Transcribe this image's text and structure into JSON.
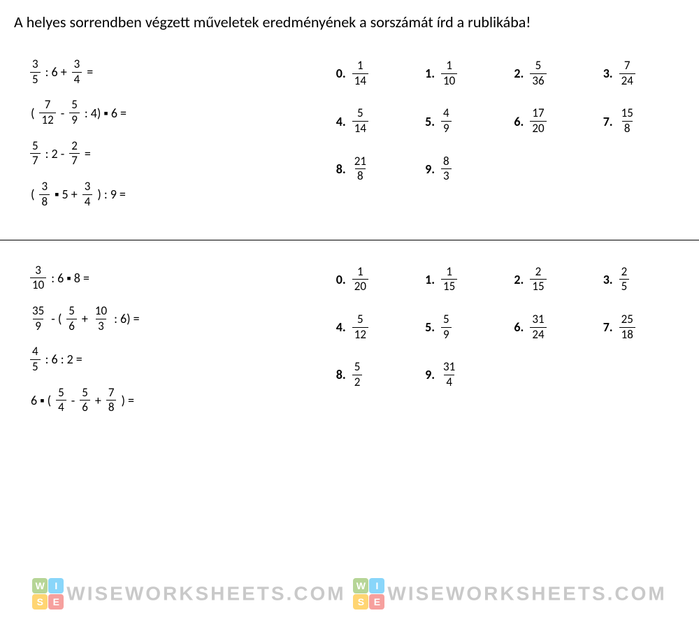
{
  "title": "A helyes sorrendben végzett műveletek eredményének a sorszámát írd a rublikába!",
  "sections": [
    {
      "problems": [
        {
          "parts": [
            {
              "frac": [
                "3",
                "5"
              ]
            },
            {
              "text": " : 6 + "
            },
            {
              "frac": [
                "3",
                "4"
              ]
            },
            {
              "text": " ="
            }
          ]
        },
        {
          "parts": [
            {
              "text": "( "
            },
            {
              "frac": [
                "7",
                "12"
              ]
            },
            {
              "text": " - "
            },
            {
              "frac": [
                "5",
                "9"
              ]
            },
            {
              "text": " : 4) ▪ 6 ="
            }
          ]
        },
        {
          "parts": [
            {
              "frac": [
                "5",
                "7"
              ]
            },
            {
              "text": " : 2 - "
            },
            {
              "frac": [
                "2",
                "7"
              ]
            },
            {
              "text": " ="
            }
          ]
        },
        {
          "parts": [
            {
              "text": "( "
            },
            {
              "frac": [
                "3",
                "8"
              ]
            },
            {
              "text": " ▪ 5 + "
            },
            {
              "frac": [
                "3",
                "4"
              ]
            },
            {
              "text": " ) : 9 ="
            }
          ]
        }
      ],
      "answers": [
        {
          "n": "0.",
          "num": "1",
          "den": "14"
        },
        {
          "n": "1.",
          "num": "1",
          "den": "10"
        },
        {
          "n": "2.",
          "num": "5",
          "den": "36"
        },
        {
          "n": "3.",
          "num": "7",
          "den": "24"
        },
        {
          "n": "4.",
          "num": "5",
          "den": "14"
        },
        {
          "n": "5.",
          "num": "4",
          "den": "9"
        },
        {
          "n": "6.",
          "num": "17",
          "den": "20"
        },
        {
          "n": "7.",
          "num": "15",
          "den": "8"
        },
        {
          "n": "8.",
          "num": "21",
          "den": "8"
        },
        {
          "n": "9.",
          "num": "8",
          "den": "3"
        }
      ]
    },
    {
      "problems": [
        {
          "parts": [
            {
              "frac": [
                "3",
                "10"
              ]
            },
            {
              "text": " : 6 ▪ 8 ="
            }
          ]
        },
        {
          "parts": [
            {
              "frac": [
                "35",
                "9"
              ]
            },
            {
              "text": " - ( "
            },
            {
              "frac": [
                "5",
                "6"
              ]
            },
            {
              "text": " + "
            },
            {
              "frac": [
                "10",
                "3"
              ]
            },
            {
              "text": " : 6) ="
            }
          ]
        },
        {
          "parts": [
            {
              "frac": [
                "4",
                "5"
              ]
            },
            {
              "text": " : 6 : 2 ="
            }
          ]
        },
        {
          "parts": [
            {
              "text": "6 ▪ ( "
            },
            {
              "frac": [
                "5",
                "4"
              ]
            },
            {
              "text": " - "
            },
            {
              "frac": [
                "5",
                "6"
              ]
            },
            {
              "text": " + "
            },
            {
              "frac": [
                "7",
                "8"
              ]
            },
            {
              "text": " ) ="
            }
          ]
        }
      ],
      "answers": [
        {
          "n": "0.",
          "num": "1",
          "den": "20"
        },
        {
          "n": "1.",
          "num": "1",
          "den": "15"
        },
        {
          "n": "2.",
          "num": "2",
          "den": "15"
        },
        {
          "n": "3.",
          "num": "2",
          "den": "5"
        },
        {
          "n": "4.",
          "num": "5",
          "den": "12"
        },
        {
          "n": "5.",
          "num": "5",
          "den": "9"
        },
        {
          "n": "6.",
          "num": "31",
          "den": "24"
        },
        {
          "n": "7.",
          "num": "25",
          "den": "18"
        },
        {
          "n": "8.",
          "num": "5",
          "den": "2"
        },
        {
          "n": "9.",
          "num": "31",
          "den": "4"
        }
      ]
    }
  ],
  "watermark": {
    "logo_colors": [
      "#7cb342",
      "#29b6f6",
      "#ffb300",
      "#ef5350"
    ],
    "logo_letters": [
      "W",
      "I",
      "S",
      "E"
    ],
    "text": "WISEWORKSHEETS.COM",
    "text_color": "#9e9e9e"
  }
}
